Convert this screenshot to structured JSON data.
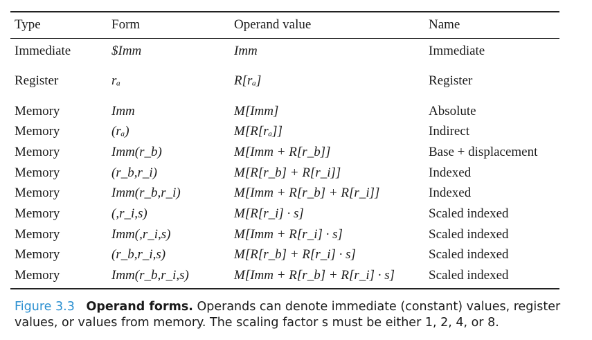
{
  "table": {
    "headers": [
      "Type",
      "Form",
      "Operand value",
      "Name"
    ],
    "rows": [
      {
        "type": "Immediate",
        "form": "$Imm",
        "value": "Imm",
        "name": "Immediate"
      },
      {
        "type": "Register",
        "form": "rₐ",
        "value": "R[rₐ]",
        "name": "Register"
      },
      {
        "type": "Memory",
        "form": "Imm",
        "value": "M[Imm]",
        "name": "Absolute"
      },
      {
        "type": "Memory",
        "form": "(rₐ)",
        "value": "M[R[rₐ]]",
        "name": "Indirect"
      },
      {
        "type": "Memory",
        "form": "Imm(r_b)",
        "value": "M[Imm + R[r_b]]",
        "name": "Base + displacement"
      },
      {
        "type": "Memory",
        "form": "(r_b,r_i)",
        "value": "M[R[r_b] + R[r_i]]",
        "name": "Indexed"
      },
      {
        "type": "Memory",
        "form": "Imm(r_b,r_i)",
        "value": "M[Imm + R[r_b] + R[r_i]]",
        "name": "Indexed"
      },
      {
        "type": "Memory",
        "form": "(,r_i,s)",
        "value": "M[R[r_i] · s]",
        "name": "Scaled indexed"
      },
      {
        "type": "Memory",
        "form": "Imm(,r_i,s)",
        "value": "M[Imm + R[r_i] · s]",
        "name": "Scaled indexed"
      },
      {
        "type": "Memory",
        "form": "(r_b,r_i,s)",
        "value": "M[R[r_b] + R[r_i] · s]",
        "name": "Scaled indexed"
      },
      {
        "type": "Memory",
        "form": "Imm(r_b,r_i,s)",
        "value": "M[Imm + R[r_b] + R[r_i] · s]",
        "name": "Scaled indexed"
      }
    ]
  },
  "caption": {
    "label": "Figure 3.3",
    "title": "Operand forms.",
    "text": "Operands can denote immediate (constant) values, register values, or values from memory. The scaling factor s must be either 1, 2, 4, or 8."
  }
}
